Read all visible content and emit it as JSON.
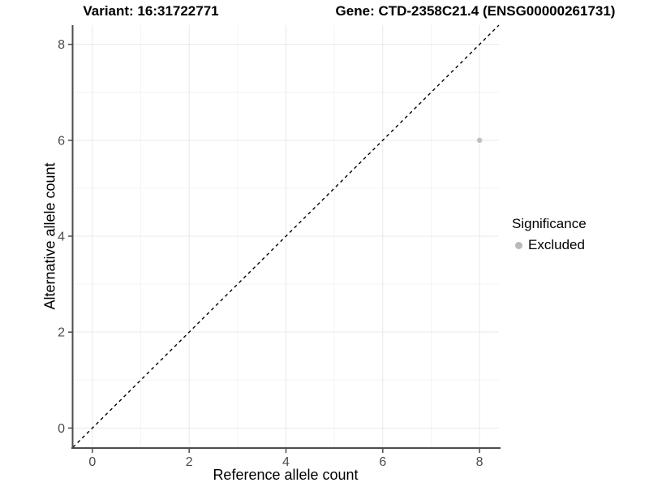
{
  "header": {
    "variant_title": "Variant: 16:31722771",
    "gene_title": "Gene: CTD-2358C21.4 (ENSG00000261731)"
  },
  "legend": {
    "title": "Significance",
    "items": [
      {
        "label": "Excluded",
        "color": "#b9b9b9"
      }
    ]
  },
  "chart_data": {
    "type": "scatter",
    "title": "Variant: 16:31722771 / Gene: CTD-2358C21.4 (ENSG00000261731)",
    "xlabel": "Reference allele count",
    "ylabel": "Alternative allele count",
    "xlim": [
      -0.4,
      8.4
    ],
    "ylim": [
      -0.4,
      8.4
    ],
    "x_ticks": [
      0,
      2,
      4,
      6,
      8
    ],
    "y_ticks": [
      0,
      2,
      4,
      6,
      8
    ],
    "x_minor": [
      1,
      3,
      5,
      7
    ],
    "y_minor": [
      1,
      3,
      5,
      7
    ],
    "grid": "major and minor, light gray on white panel",
    "legend_position": "right",
    "series": [
      {
        "name": "Excluded",
        "color": "#c0c0c0",
        "points": [
          {
            "x": 8,
            "y": 6
          }
        ]
      }
    ],
    "reference_line": {
      "kind": "identity y=x",
      "style": "dashed",
      "color": "#000000",
      "from": [
        -0.4,
        -0.4
      ],
      "to": [
        8.4,
        8.4
      ]
    }
  },
  "style_colors": {
    "major_grid": "#e9e9e9",
    "minor_grid": "#f4f4f4",
    "axis_line": "#4d4d4d",
    "tick_label": "#4d4d4d",
    "point": "#c0c0c0",
    "dashed_line": "#000000"
  }
}
